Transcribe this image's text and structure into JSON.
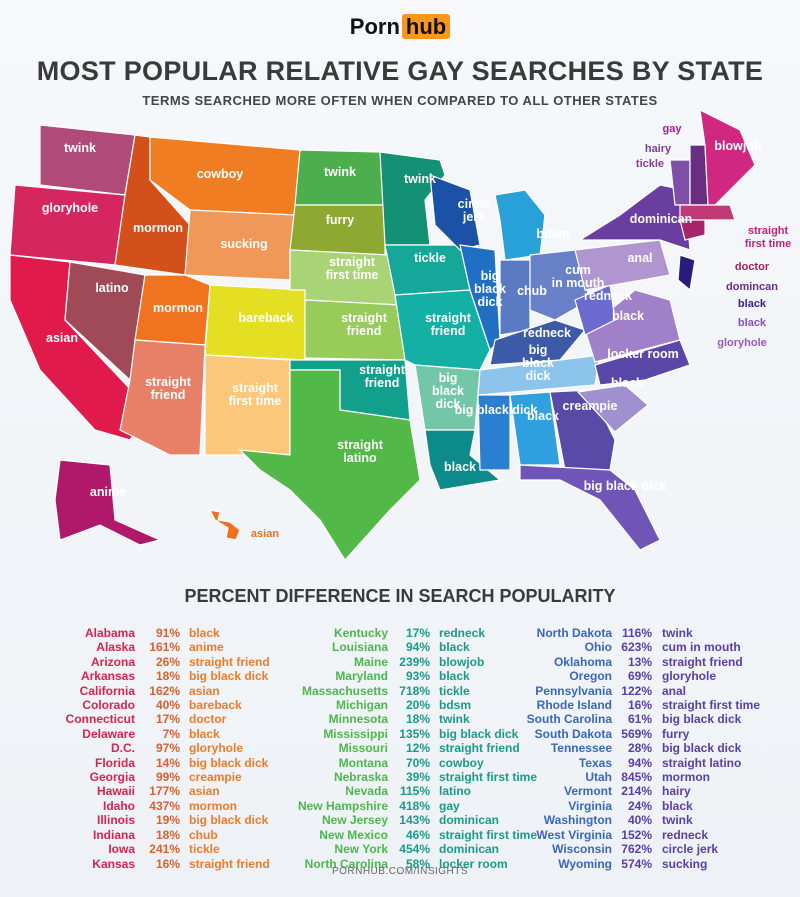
{
  "logo": {
    "part1": "Porn",
    "part2": "hub",
    "accent": "#f7971d"
  },
  "title": "MOST POPULAR RELATIVE GAY SEARCHES BY STATE",
  "subtitle": "TERMS SEARCHED MORE OFTEN WHEN COMPARED TO ALL OTHER STATES",
  "map": {
    "labels": [
      "twink",
      "gloryhole",
      "asian",
      "latino",
      "mormon",
      "cowboy",
      "mormon",
      "sucking",
      "bareback",
      "straight friend",
      "straight first time",
      "twink",
      "furry",
      "straight first time",
      "straight friend",
      "straight friend",
      "straight latino",
      "twink",
      "tickle",
      "straight friend",
      "big black dick",
      "circle jerk",
      "big black dick",
      "bdsm",
      "chub",
      "cum in mouth",
      "redneck",
      "redneck",
      "big black dick",
      "big black dick",
      "black",
      "black",
      "creampie",
      "big black dick",
      "black",
      "locker room",
      "black",
      "anal",
      "dominican",
      "gay",
      "hairy",
      "tickle",
      "blowjob",
      "straight first time",
      "doctor",
      "domincan",
      "black",
      "black",
      "gloryhole",
      "anime",
      "asian"
    ]
  },
  "table_title": "PERCENT DIFFERENCE IN SEARCH POPULARITY",
  "table": {
    "columns": [
      [
        {
          "state": "Alabama",
          "pct": "91%",
          "term": "black"
        },
        {
          "state": "Alaska",
          "pct": "161%",
          "term": "anime"
        },
        {
          "state": "Arizona",
          "pct": "26%",
          "term": "straight friend"
        },
        {
          "state": "Arkansas",
          "pct": "18%",
          "term": "big black dick"
        },
        {
          "state": "California",
          "pct": "162%",
          "term": "asian"
        },
        {
          "state": "Colorado",
          "pct": "40%",
          "term": "bareback"
        },
        {
          "state": "Connecticut",
          "pct": "17%",
          "term": "doctor"
        },
        {
          "state": "Delaware",
          "pct": "7%",
          "term": "black"
        },
        {
          "state": "D.C.",
          "pct": "97%",
          "term": "gloryhole"
        },
        {
          "state": "Florida",
          "pct": "14%",
          "term": "big black dick"
        },
        {
          "state": "Georgia",
          "pct": "99%",
          "term": "creampie"
        },
        {
          "state": "Hawaii",
          "pct": "177%",
          "term": "asian"
        },
        {
          "state": "Idaho",
          "pct": "437%",
          "term": "mormon"
        },
        {
          "state": "Illinois",
          "pct": "19%",
          "term": "big black dick"
        },
        {
          "state": "Indiana",
          "pct": "18%",
          "term": "chub"
        },
        {
          "state": "Iowa",
          "pct": "241%",
          "term": "tickle"
        },
        {
          "state": "Kansas",
          "pct": "16%",
          "term": "straight friend"
        }
      ],
      [
        {
          "state": "Kentucky",
          "pct": "17%",
          "term": "redneck"
        },
        {
          "state": "Louisiana",
          "pct": "94%",
          "term": "black"
        },
        {
          "state": "Maine",
          "pct": "239%",
          "term": "blowjob"
        },
        {
          "state": "Maryland",
          "pct": "93%",
          "term": "black"
        },
        {
          "state": "Massachusetts",
          "pct": "718%",
          "term": "tickle"
        },
        {
          "state": "Michigan",
          "pct": "20%",
          "term": "bdsm"
        },
        {
          "state": "Minnesota",
          "pct": "18%",
          "term": "twink"
        },
        {
          "state": "Mississippi",
          "pct": "135%",
          "term": "big black dick"
        },
        {
          "state": "Missouri",
          "pct": "12%",
          "term": "straight friend"
        },
        {
          "state": "Montana",
          "pct": "70%",
          "term": "cowboy"
        },
        {
          "state": "Nebraska",
          "pct": "39%",
          "term": "straight first time"
        },
        {
          "state": "Nevada",
          "pct": "115%",
          "term": "latino"
        },
        {
          "state": "New Hampshire",
          "pct": "418%",
          "term": "gay"
        },
        {
          "state": "New Jersey",
          "pct": "143%",
          "term": "dominican"
        },
        {
          "state": "New Mexico",
          "pct": "46%",
          "term": "straight first time"
        },
        {
          "state": "New York",
          "pct": "454%",
          "term": "dominican"
        },
        {
          "state": "North Carolina",
          "pct": "58%",
          "term": "locker room"
        }
      ],
      [
        {
          "state": "North Dakota",
          "pct": "116%",
          "term": "twink"
        },
        {
          "state": "Ohio",
          "pct": "623%",
          "term": "cum in mouth"
        },
        {
          "state": "Oklahoma",
          "pct": "13%",
          "term": "straight friend"
        },
        {
          "state": "Oregon",
          "pct": "69%",
          "term": "gloryhole"
        },
        {
          "state": "Pennsylvania",
          "pct": "122%",
          "term": "anal"
        },
        {
          "state": "Rhode Island",
          "pct": "16%",
          "term": "straight first time"
        },
        {
          "state": "South Carolina",
          "pct": "61%",
          "term": "big black dick"
        },
        {
          "state": "South Dakota",
          "pct": "569%",
          "term": "furry"
        },
        {
          "state": "Tennessee",
          "pct": "28%",
          "term": "big black dick"
        },
        {
          "state": "Texas",
          "pct": "94%",
          "term": "straight latino"
        },
        {
          "state": "Utah",
          "pct": "845%",
          "term": "mormon"
        },
        {
          "state": "Vermont",
          "pct": "214%",
          "term": "hairy"
        },
        {
          "state": "Virginia",
          "pct": "24%",
          "term": "black"
        },
        {
          "state": "Washington",
          "pct": "40%",
          "term": "twink"
        },
        {
          "state": "West Virginia",
          "pct": "152%",
          "term": "redneck"
        },
        {
          "state": "Wisconsin",
          "pct": "762%",
          "term": "circle jerk"
        },
        {
          "state": "Wyoming",
          "pct": "574%",
          "term": "sucking"
        }
      ]
    ]
  },
  "footer": "PORNHUB.COM/INSIGHTS"
}
